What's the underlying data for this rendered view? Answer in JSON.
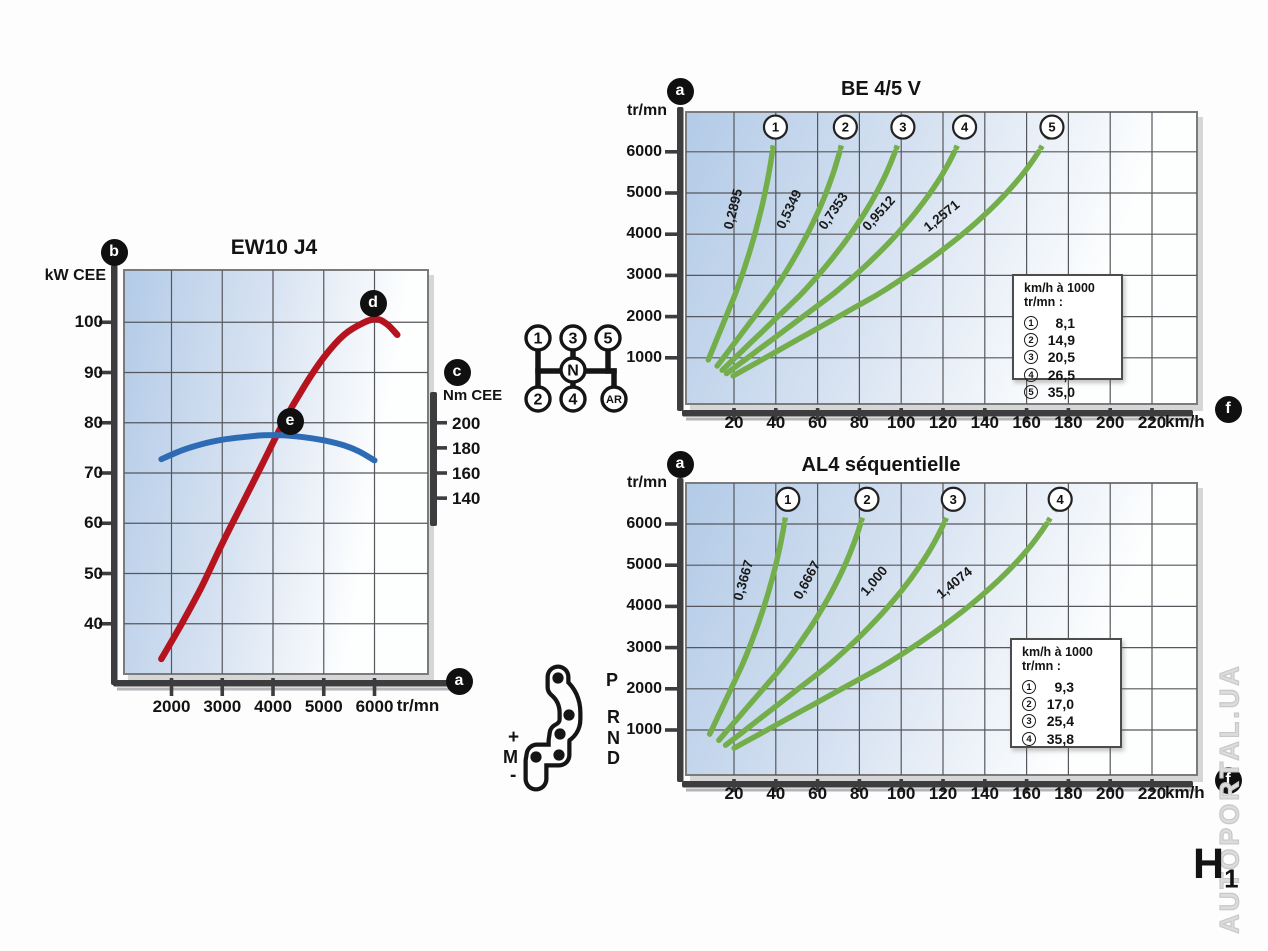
{
  "page": {
    "watermark": "AUTOPORTAL.UA",
    "code": {
      "main": "H",
      "sub": "1"
    }
  },
  "chart_data": [
    {
      "type": "line",
      "title": "EW10 J4",
      "xlabel": "tr/mn",
      "ylabel_left": "kW CEE",
      "ylabel_right": "Nm CEE",
      "x_ticks": [
        2000,
        3000,
        4000,
        5000,
        6000
      ],
      "y_ticks_left": [
        40,
        50,
        60,
        70,
        80,
        90,
        100
      ],
      "y_ticks_right": [
        140,
        160,
        180,
        200
      ],
      "xlim_rpm": [
        1064,
        7054
      ],
      "ylim_left_kW": [
        30,
        110.4
      ],
      "axis_alignment_note": "80 kW aligns with 200 Nm; 10 kW = 40 Nm",
      "grid": true,
      "series": [
        {
          "name": "power_kW",
          "color": "#b5141f",
          "points": [
            [
              1800,
              33
            ],
            [
              2200,
              40
            ],
            [
              2600,
              47.5
            ],
            [
              3000,
              56
            ],
            [
              3400,
              64
            ],
            [
              3800,
              72
            ],
            [
              4200,
              80
            ],
            [
              4600,
              87
            ],
            [
              5000,
              93
            ],
            [
              5400,
              97.5
            ],
            [
              5800,
              100
            ],
            [
              6050,
              100.6
            ],
            [
              6250,
              99.6
            ],
            [
              6450,
              97.5
            ]
          ]
        },
        {
          "name": "torque_Nm",
          "color": "#2d6cb4",
          "points": [
            [
              1800,
              171
            ],
            [
              2200,
              178
            ],
            [
              2600,
              183
            ],
            [
              3000,
              186.5
            ],
            [
              3400,
              188.5
            ],
            [
              3800,
              190
            ],
            [
              4200,
              190
            ],
            [
              4600,
              188.5
            ],
            [
              5000,
              186
            ],
            [
              5400,
              182
            ],
            [
              5700,
              177
            ],
            [
              6000,
              170
            ]
          ]
        }
      ],
      "markers": {
        "panel": "b",
        "speed_axis": "a",
        "torque_axis": "c",
        "power_curve": "d",
        "torque_curve": "e"
      }
    },
    {
      "type": "line",
      "title": "BE 4/5 V",
      "xlabel": "km/h",
      "ylabel": "tr/mn",
      "x_ticks": [
        20,
        40,
        60,
        80,
        100,
        120,
        140,
        160,
        180,
        200,
        220
      ],
      "y_ticks": [
        1000,
        2000,
        3000,
        4000,
        5000,
        6000
      ],
      "legend_title": "km/h à 1000 tr/mn :",
      "legend_position": "right-center",
      "line_color": "#73ae4a",
      "gears": [
        {
          "num": "1",
          "ratio_label": "0,2895",
          "kmh_at_1000_label": "8,1",
          "kmh_at_1000": 8.1
        },
        {
          "num": "2",
          "ratio_label": "0,5349",
          "kmh_at_1000_label": "14,9",
          "kmh_at_1000": 14.9
        },
        {
          "num": "3",
          "ratio_label": "0,7353",
          "kmh_at_1000_label": "20,5",
          "kmh_at_1000": 20.5
        },
        {
          "num": "4",
          "ratio_label": "0,9512",
          "kmh_at_1000_label": "26,5",
          "kmh_at_1000": 26.5
        },
        {
          "num": "5",
          "ratio_label": "1,2571",
          "kmh_at_1000_label": "35,0",
          "kmh_at_1000": 35.0
        }
      ],
      "markers": {
        "rpm_axis": "a",
        "speed_axis": "f"
      }
    },
    {
      "type": "line",
      "title": "AL4 séquentielle",
      "xlabel": "km/h",
      "ylabel": "tr/mn",
      "x_ticks": [
        20,
        40,
        60,
        80,
        100,
        120,
        140,
        160,
        180,
        200,
        220
      ],
      "y_ticks": [
        1000,
        2000,
        3000,
        4000,
        5000,
        6000
      ],
      "legend_title": "km/h à 1000 tr/mn :",
      "legend_position": "right-center",
      "line_color": "#73ae4a",
      "gears": [
        {
          "num": "1",
          "ratio_label": "0,3667",
          "kmh_at_1000_label": "9,3",
          "kmh_at_1000": 9.3
        },
        {
          "num": "2",
          "ratio_label": "0,6667",
          "kmh_at_1000_label": "17,0",
          "kmh_at_1000": 17.0
        },
        {
          "num": "3",
          "ratio_label": "1,000",
          "kmh_at_1000_label": "25,4",
          "kmh_at_1000": 25.4
        },
        {
          "num": "4",
          "ratio_label": "1,4074",
          "kmh_at_1000_label": "35,8",
          "kmh_at_1000": 35.8
        }
      ],
      "markers": {
        "rpm_axis": "a",
        "speed_axis": "f"
      }
    }
  ],
  "shift_patterns": {
    "manual": {
      "top_row": [
        "1",
        "3",
        "5"
      ],
      "bottom_row": [
        "2",
        "4",
        "AR"
      ],
      "center": "N"
    },
    "automatic": {
      "gate": [
        "P",
        "R",
        "N",
        "D"
      ],
      "sequential": [
        "+",
        "M",
        "-"
      ]
    }
  }
}
